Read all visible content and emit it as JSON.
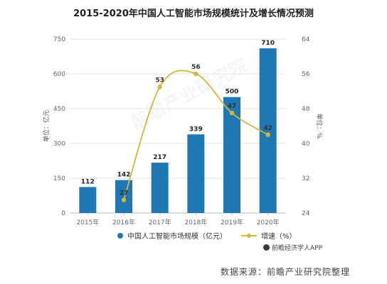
{
  "chart_data": {
    "type": "bar",
    "title": "2015-2020年中国人工智能市场规模统计及增长情况预测",
    "categories": [
      "2015年",
      "2016年",
      "2017年",
      "2018年",
      "2019年",
      "2020年"
    ],
    "series": [
      {
        "name": "中国人工智能市场规模（亿元）",
        "type": "bar",
        "axis": "left",
        "values": [
          112,
          142,
          217,
          339,
          500,
          710
        ]
      },
      {
        "name": "增速（%）",
        "type": "line",
        "axis": "right",
        "values": [
          null,
          27,
          53,
          56,
          47,
          42
        ]
      }
    ],
    "ylabel": "单位：亿元",
    "y2label": "单位：%",
    "ylim": [
      0,
      750
    ],
    "y2lim": [
      24,
      64
    ],
    "yticks": [
      0,
      150,
      300,
      450,
      600,
      750
    ],
    "y2ticks": [
      24,
      32,
      40,
      48,
      56,
      64
    ],
    "legend_position": "bottom",
    "colors": {
      "bar": "#1f77b4",
      "line": "#d4b63a"
    }
  },
  "brand": "前瞻经济学人APP",
  "source": "数据来源：前瞻产业研究院整理",
  "watermark": "前瞻产业研究院"
}
